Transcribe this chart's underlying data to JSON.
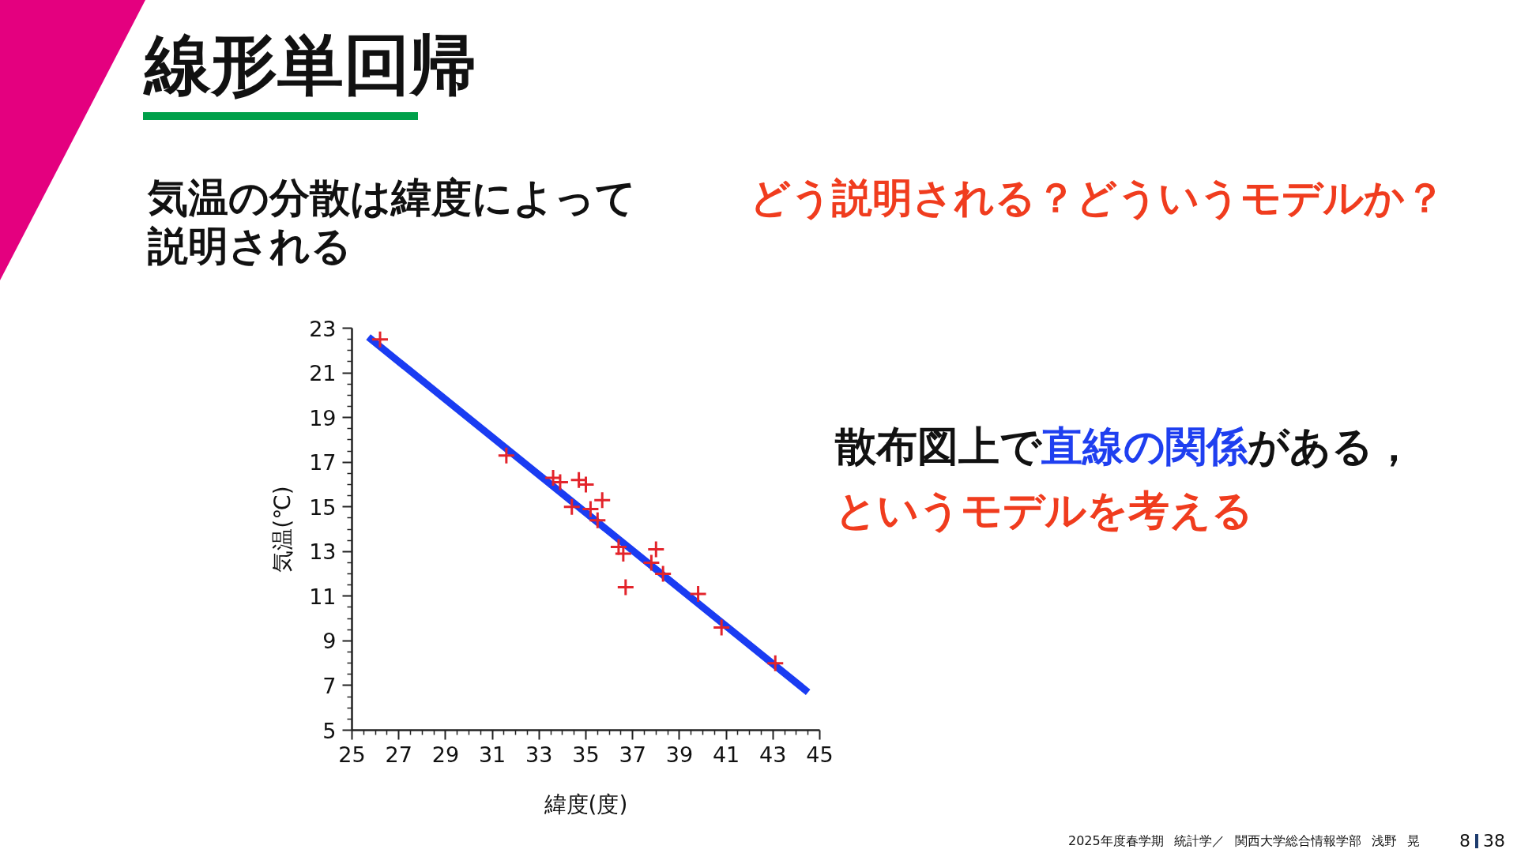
{
  "chart_data": {
    "type": "scatter",
    "title": "線形単回帰",
    "xlabel": "緯度(度)",
    "ylabel": "気温(℃)",
    "xlim": [
      25,
      45
    ],
    "ylim": [
      5,
      23
    ],
    "xticks": [
      25,
      27,
      29,
      31,
      33,
      35,
      37,
      39,
      41,
      43,
      45
    ],
    "yticks": [
      5,
      7,
      9,
      11,
      13,
      15,
      17,
      19,
      21,
      23
    ],
    "series": [
      {
        "type": "line",
        "color": "#1a3cf2",
        "line_style": "solid",
        "x": [
          25.7,
          44.5
        ],
        "values": [
          22.6,
          6.7
        ]
      },
      {
        "color": "#e3242b",
        "marker": "cross",
        "x": [
          26.2,
          31.6,
          33.6,
          33.9,
          34.7,
          35.0,
          35.7,
          34.4,
          35.2,
          35.5,
          36.4,
          36.6,
          38.0,
          37.8,
          38.3,
          36.7,
          39.8,
          40.8,
          43.1
        ],
        "values": [
          22.5,
          17.3,
          16.3,
          16.1,
          16.2,
          16.0,
          15.3,
          15.0,
          14.9,
          14.4,
          13.2,
          12.9,
          13.1,
          12.5,
          12.0,
          11.4,
          11.1,
          9.6,
          8.0
        ]
      }
    ],
    "annotations": [
      "気温の分散は緯度によって説明される",
      "どう説明される？どういうモデルか？",
      "散布図上で",
      "直線の関係",
      "がある，",
      "というモデルを考える",
      "2025年度春学期 統計学／ 関西大学総合情報学部 浅野 晃",
      "8",
      "38"
    ]
  }
}
